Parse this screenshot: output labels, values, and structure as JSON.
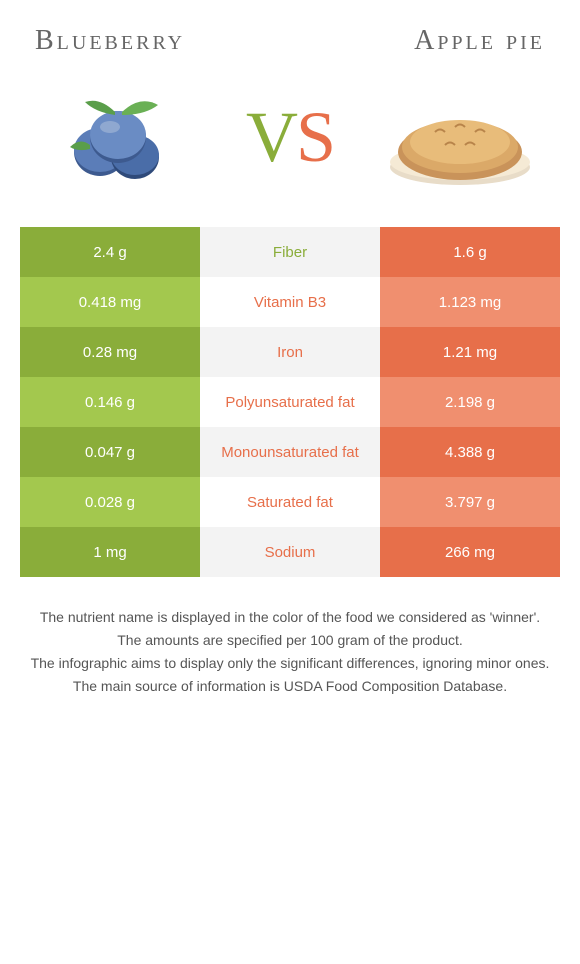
{
  "header": {
    "left_title": "Blueberry",
    "right_title": "Apple pie"
  },
  "vs": {
    "v": "V",
    "s": "S"
  },
  "colors": {
    "green_dark": "#8aad3a",
    "green_light": "#a3c84e",
    "orange_dark": "#e76f4a",
    "orange_light": "#f08f6f",
    "nutrient_bg_dark": "#f3f3f3",
    "nutrient_bg_light": "#ffffff",
    "text_green": "#8aad3a",
    "text_orange": "#e76f4a"
  },
  "rows": [
    {
      "left": "2.4 g",
      "nutrient": "Fiber",
      "right": "1.6 g",
      "winner": "left"
    },
    {
      "left": "0.418 mg",
      "nutrient": "Vitamin B3",
      "right": "1.123 mg",
      "winner": "right"
    },
    {
      "left": "0.28 mg",
      "nutrient": "Iron",
      "right": "1.21 mg",
      "winner": "right"
    },
    {
      "left": "0.146 g",
      "nutrient": "Polyunsaturated fat",
      "right": "2.198 g",
      "winner": "right"
    },
    {
      "left": "0.047 g",
      "nutrient": "Monounsaturated fat",
      "right": "4.388 g",
      "winner": "right"
    },
    {
      "left": "0.028 g",
      "nutrient": "Saturated fat",
      "right": "3.797 g",
      "winner": "right"
    },
    {
      "left": "1 mg",
      "nutrient": "Sodium",
      "right": "266 mg",
      "winner": "right"
    }
  ],
  "footer": [
    "The nutrient name is displayed in the color of the food we considered as 'winner'.",
    "The amounts are specified per 100 gram of the product.",
    "The infographic aims to display only the significant differences, ignoring minor ones.",
    "The main source of information is USDA Food Composition Database."
  ]
}
